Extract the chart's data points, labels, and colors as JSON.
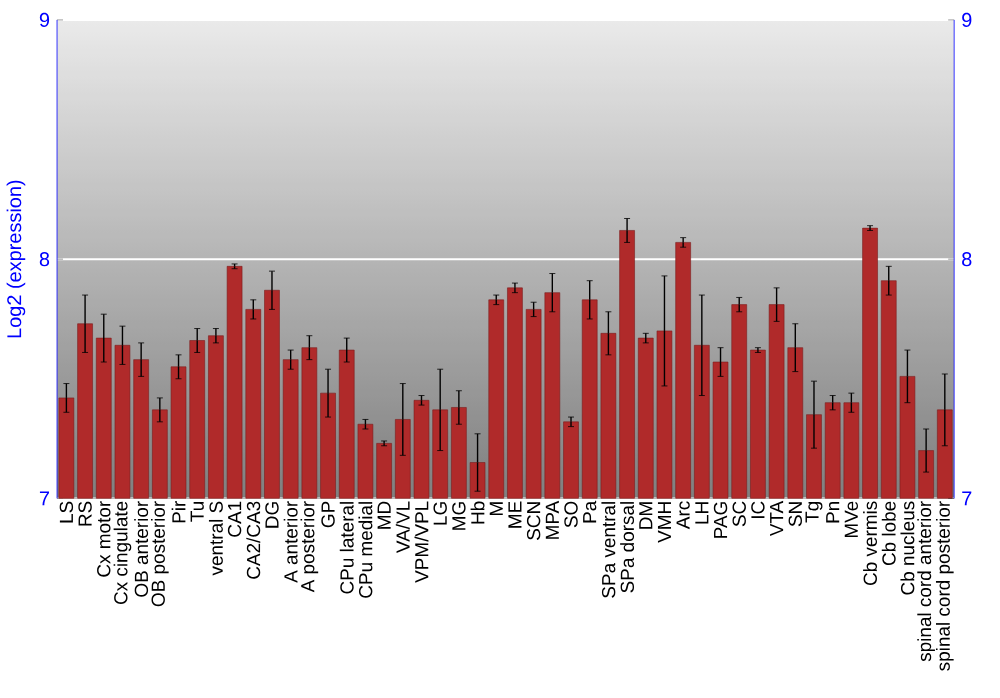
{
  "chart_data": {
    "type": "bar",
    "ylabel": "Log2 (expression)",
    "categories": [
      "LS",
      "RS",
      "Cx motor",
      "Cx cingulate",
      "OB anterior",
      "OB posterior",
      "Pir",
      "Tu",
      "ventral S",
      "CA1",
      "CA2/CA3",
      "DG",
      "A anterior",
      "A posterior",
      "GP",
      "CPu lateral",
      "CPu medial",
      "MD",
      "VA/VL",
      "VPM/VPL",
      "LG",
      "MG",
      "Hb",
      "M",
      "ME",
      "SCN",
      "MPA",
      "SO",
      "Pa",
      "SPa ventral",
      "SPa dorsal",
      "DM",
      "VMH",
      "Arc",
      "LH",
      "PAG",
      "SC",
      "IC",
      "VTA",
      "SN",
      "Tg",
      "Pn",
      "MVe",
      "Cb vermis",
      "Cb lobe",
      "Cb nucleus",
      "spinal cord anterior",
      "spinal cord posterior"
    ],
    "values": [
      7.42,
      7.73,
      7.67,
      7.64,
      7.58,
      7.37,
      7.55,
      7.66,
      7.68,
      7.97,
      7.79,
      7.87,
      7.58,
      7.63,
      7.44,
      7.62,
      7.31,
      7.23,
      7.33,
      7.41,
      7.37,
      7.38,
      7.15,
      7.83,
      7.88,
      7.79,
      7.86,
      7.32,
      7.83,
      7.69,
      8.12,
      7.67,
      7.7,
      8.07,
      7.64,
      7.57,
      7.81,
      7.62,
      7.81,
      7.63,
      7.35,
      7.4,
      7.4,
      8.13,
      7.91,
      7.51,
      7.2,
      7.37
    ],
    "errors": [
      0.06,
      0.12,
      0.1,
      0.08,
      0.07,
      0.05,
      0.05,
      0.05,
      0.03,
      0.01,
      0.04,
      0.08,
      0.04,
      0.05,
      0.1,
      0.05,
      0.02,
      0.01,
      0.15,
      0.02,
      0.17,
      0.07,
      0.12,
      0.02,
      0.02,
      0.03,
      0.08,
      0.02,
      0.08,
      0.09,
      0.05,
      0.02,
      0.23,
      0.02,
      0.21,
      0.06,
      0.03,
      0.01,
      0.07,
      0.1,
      0.14,
      0.03,
      0.04,
      0.01,
      0.06,
      0.11,
      0.09,
      0.15
    ],
    "color": "#b02a2a",
    "ylim": [
      7,
      9
    ],
    "yticks": [
      7,
      8,
      9
    ],
    "y2lim": [
      7,
      9
    ],
    "y2ticks": [
      7,
      8,
      9
    ],
    "grid": "y"
  }
}
